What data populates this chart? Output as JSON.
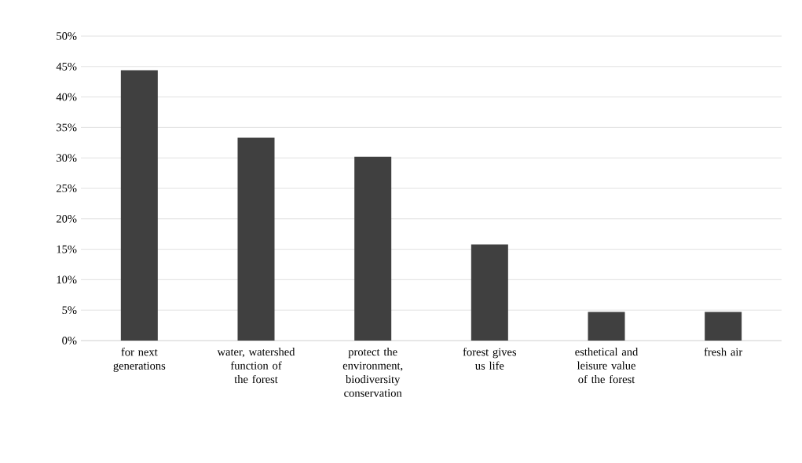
{
  "chart_data": {
    "type": "bar",
    "categories": [
      "for next generations",
      "water, watershed function of the forest",
      "protect the environment, biodiversity conservation",
      "forest gives us life",
      "esthetical and leisure value of the forest",
      "fresh air"
    ],
    "values": [
      44.4,
      33.3,
      30.2,
      15.8,
      4.7,
      4.7
    ],
    "color": "#404040",
    "ylim": [
      0,
      50
    ],
    "yticks": [
      {
        "value": 0,
        "label": "0%"
      },
      {
        "value": 5,
        "label": "5%"
      },
      {
        "value": 10,
        "label": "10%"
      },
      {
        "value": 15,
        "label": "15%"
      },
      {
        "value": 20,
        "label": "20%"
      },
      {
        "value": 25,
        "label": "25%"
      },
      {
        "value": 30,
        "label": "30%"
      },
      {
        "value": 35,
        "label": "35%"
      },
      {
        "value": 40,
        "label": "40%"
      },
      {
        "value": 45,
        "label": "45%"
      },
      {
        "value": 50,
        "label": "50%"
      }
    ],
    "grid": "y"
  }
}
